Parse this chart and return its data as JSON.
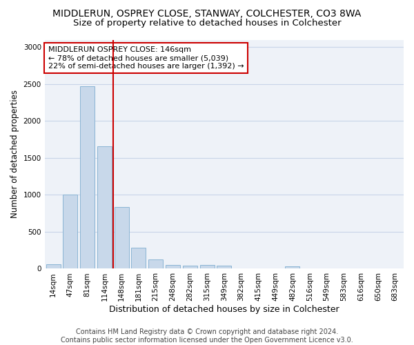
{
  "title": "MIDDLERUN, OSPREY CLOSE, STANWAY, COLCHESTER, CO3 8WA",
  "subtitle": "Size of property relative to detached houses in Colchester",
  "xlabel": "Distribution of detached houses by size in Colchester",
  "ylabel": "Number of detached properties",
  "categories": [
    "14sqm",
    "47sqm",
    "81sqm",
    "114sqm",
    "148sqm",
    "181sqm",
    "215sqm",
    "248sqm",
    "282sqm",
    "315sqm",
    "349sqm",
    "382sqm",
    "415sqm",
    "449sqm",
    "482sqm",
    "516sqm",
    "549sqm",
    "583sqm",
    "616sqm",
    "650sqm",
    "683sqm"
  ],
  "values": [
    60,
    1000,
    2470,
    1660,
    840,
    280,
    130,
    55,
    45,
    50,
    40,
    5,
    0,
    0,
    30,
    0,
    0,
    0,
    0,
    0,
    0
  ],
  "bar_color": "#c8d8ea",
  "bar_edge_color": "#8ab4d4",
  "vline_index": 4,
  "annotation_text": "MIDDLERUN OSPREY CLOSE: 146sqm\n← 78% of detached houses are smaller (5,039)\n22% of semi-detached houses are larger (1,392) →",
  "annotation_box_color": "#ffffff",
  "annotation_box_edge_color": "#cc0000",
  "vline_color": "#cc0000",
  "grid_color": "#c8d4e8",
  "background_color": "#eef2f8",
  "footer_text": "Contains HM Land Registry data © Crown copyright and database right 2024.\nContains public sector information licensed under the Open Government Licence v3.0.",
  "ylim": [
    0,
    3100
  ],
  "title_fontsize": 10,
  "subtitle_fontsize": 9.5,
  "xlabel_fontsize": 9,
  "ylabel_fontsize": 8.5,
  "tick_fontsize": 7.5,
  "footer_fontsize": 7,
  "annotation_fontsize": 8
}
